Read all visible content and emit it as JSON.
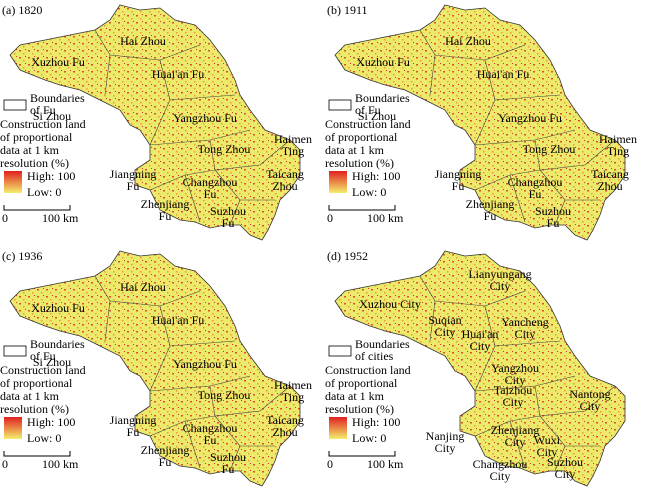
{
  "panels": [
    {
      "label": "(a) 1820",
      "regions": [
        [
          "Hai Zhou"
        ],
        [
          "Xuzhou Fu"
        ],
        [
          "Huai'an Fu"
        ],
        [
          "Si Zhou"
        ],
        [
          "Yangzhou Fu"
        ],
        [
          "Haimen",
          "Ting"
        ],
        [
          "Tong Zhou"
        ],
        [
          "Jiangning",
          "Fu"
        ],
        [
          "Changzhou",
          "Fu"
        ],
        [
          "Taicang",
          "Zhou"
        ],
        [
          "Zhenjiang",
          "Fu"
        ],
        [
          "Suzhou",
          "Fu"
        ]
      ],
      "legend_boundary": [
        "Boundaries",
        "of Fu"
      ],
      "legend_title": [
        "Construction land",
        "of proportional",
        "data at 1 km",
        "resolution (%)"
      ],
      "high": "High: 100",
      "low": "Low: 0",
      "scale": [
        "0",
        "100 km"
      ]
    },
    {
      "label": "(b) 1911",
      "regions": [
        [
          "Hai Zhou"
        ],
        [
          "Xuzhou Fu"
        ],
        [
          "Huai'an Fu"
        ],
        [
          "Si Zhou"
        ],
        [
          "Yangzhou Fu"
        ],
        [
          "Haimen",
          "Ting"
        ],
        [
          "Tong Zhou"
        ],
        [
          "Jiangning",
          "Fu"
        ],
        [
          "Changzhou",
          "Fu"
        ],
        [
          "Taicang",
          "Zhou"
        ],
        [
          "Zhenjiang",
          "Fu"
        ],
        [
          "Suzhou",
          "Fu"
        ]
      ],
      "legend_boundary": [
        "Boundaries",
        "of Fu"
      ],
      "legend_title": [
        "Construction land",
        "of proportional",
        "data at 1 km",
        "resolution (%)"
      ],
      "high": "High: 100",
      "low": "Low: 0",
      "scale": [
        "0",
        "100 km"
      ]
    },
    {
      "label": "(c) 1936",
      "regions": [
        [
          "Hai Zhou"
        ],
        [
          "Xuzhou Fu"
        ],
        [
          "Huai'an Fu"
        ],
        [
          "Si Zhou"
        ],
        [
          "Yangzhou Fu"
        ],
        [
          "Haimen",
          "Ting"
        ],
        [
          "Tong Zhou"
        ],
        [
          "Jiangning",
          "Fu"
        ],
        [
          "Changzhou",
          "Fu"
        ],
        [
          "Taicang",
          "Zhou"
        ],
        [
          "Zhenjiang",
          "Fu"
        ],
        [
          "Suzhou",
          "Fu"
        ]
      ],
      "legend_boundary": [
        "Boundaries",
        "of Fu"
      ],
      "legend_title": [
        "Construction land",
        "of proportional",
        "data at 1 km",
        "resolution (%)"
      ],
      "high": "High: 100",
      "low": "Low: 0",
      "scale": [
        "0",
        "100 km"
      ]
    },
    {
      "label": "(d) 1952",
      "regions": [
        [
          "Lianyungang",
          "City"
        ],
        [
          "Xuzhou City"
        ],
        [
          "Suqian",
          "City"
        ],
        [
          "Huai'an",
          "City"
        ],
        [
          "Yancheng",
          "City"
        ],
        [
          "Yangzhou",
          "City"
        ],
        [
          "Taizhou",
          "City"
        ],
        [
          "Nantong",
          "City"
        ],
        [
          "Nanjing",
          "City"
        ],
        [
          "Zhenjiang",
          "City"
        ],
        [
          "Wuxi",
          "City"
        ],
        [
          "Changzhou",
          "City"
        ],
        [
          "Suzhou",
          "City"
        ]
      ],
      "legend_boundary": [
        "Boundaries",
        "of cities"
      ],
      "legend_title": [
        "Construction land",
        "of proportional",
        "data at 1 km",
        "resolution (%)"
      ],
      "high": "High: 100",
      "low": "Low: 0",
      "scale": [
        "0",
        "100 km"
      ]
    }
  ]
}
